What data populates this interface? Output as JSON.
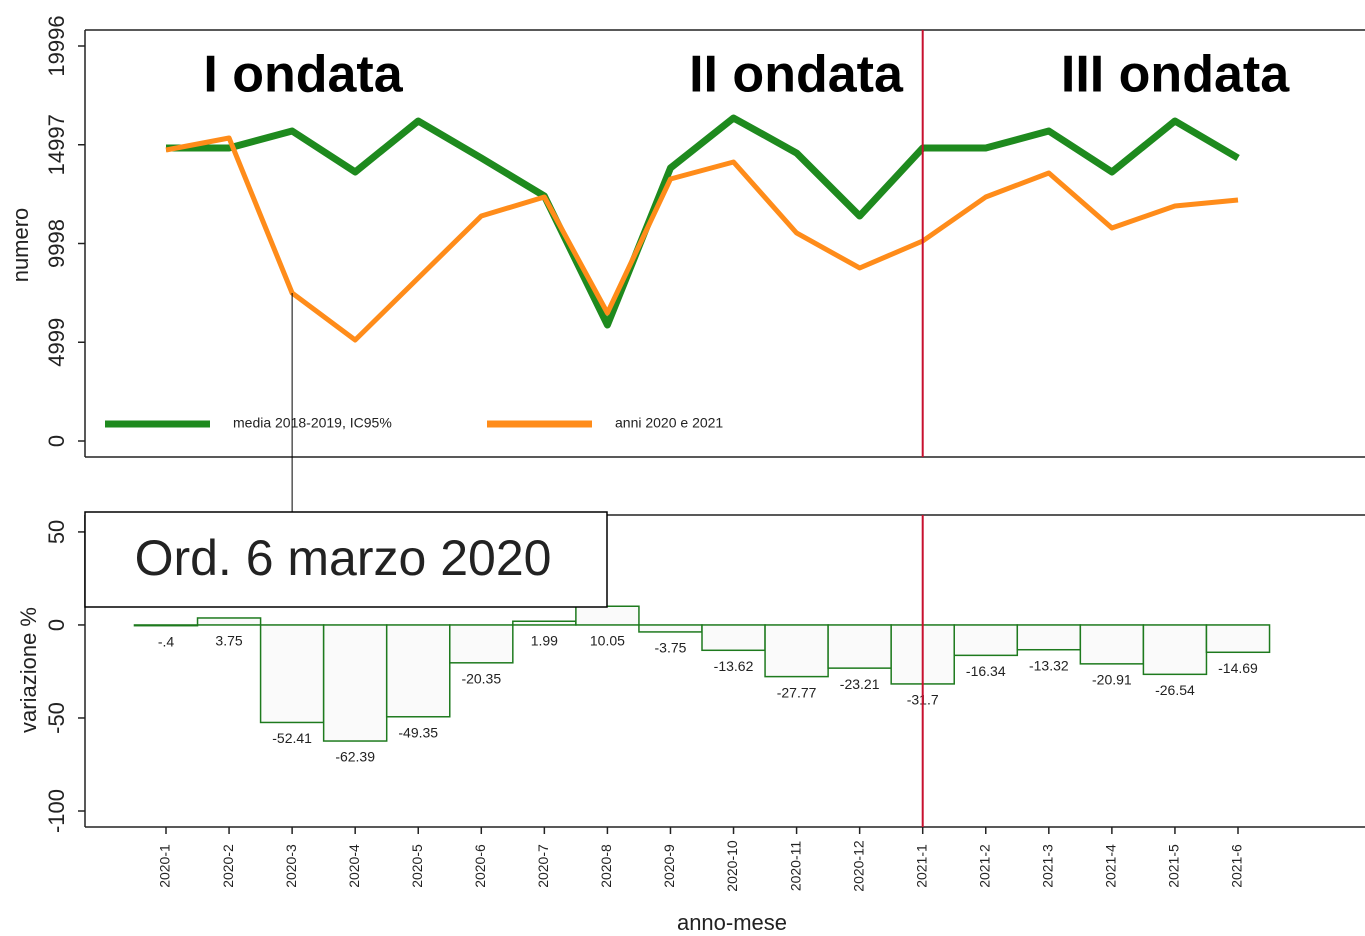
{
  "chart_data": [
    {
      "type": "line",
      "y_label": "numero",
      "ylim": [
        -810,
        20806
      ],
      "yticks": [
        0,
        4999,
        9998,
        14997,
        19996
      ],
      "series": [
        {
          "name": "media 2018-2019, IC95%",
          "color": "#1e8a1e",
          "values": [
            14833,
            14833,
            15693,
            13618,
            16199,
            14326,
            12402,
            5872,
            13820,
            16351,
            14579,
            11390,
            14833,
            14833,
            15693,
            13618,
            16199,
            14326
          ]
        },
        {
          "name": "anni 2020 e 2021",
          "color": "#ff8c1a",
          "values": [
            14731,
            15339,
            7492,
            5113,
            8251,
            11390,
            12352,
            6480,
            13263,
            14124,
            10530,
            8758,
            10125,
            12352,
            13567,
            10783,
            11897,
            12200
          ]
        }
      ],
      "annotations": [
        "I ondata",
        "II ondata",
        "III ondata",
        "Ord. 6 marzo 2020"
      ],
      "vline": {
        "x": "2021-1",
        "color": "#c8102e"
      }
    },
    {
      "type": "bar",
      "y_label": "variazione %",
      "x_label": "anno-mese",
      "categories": [
        "2020-1",
        "2020-2",
        "2020-3",
        "2020-4",
        "2020-5",
        "2020-6",
        "2020-7",
        "2020-8",
        "2020-9",
        "2020-10",
        "2020-11",
        "2020-12",
        "2021-1",
        "2021-2",
        "2021-3",
        "2021-4",
        "2021-5",
        "2021-6"
      ],
      "values": [
        -0.4,
        3.75,
        -52.41,
        -62.39,
        -49.35,
        -20.35,
        1.99,
        10.05,
        -3.75,
        -13.62,
        -27.77,
        -23.21,
        -31.7,
        -16.34,
        -13.32,
        -20.91,
        -26.54,
        -14.69
      ],
      "value_labels": [
        "-.4",
        "3.75",
        "-52.41",
        "-62.39",
        "-49.35",
        "-20.35",
        "1.99",
        "10.05",
        "-3.75",
        "-13.62",
        "-27.77",
        "-23.21",
        "-31.7",
        "-16.34",
        "-13.32",
        "-20.91",
        "-26.54",
        "-14.69"
      ],
      "color": "#1e7a1e",
      "ylim": [
        -108.6,
        59.1
      ],
      "yticks": [
        -100,
        -50,
        0,
        50
      ]
    }
  ]
}
